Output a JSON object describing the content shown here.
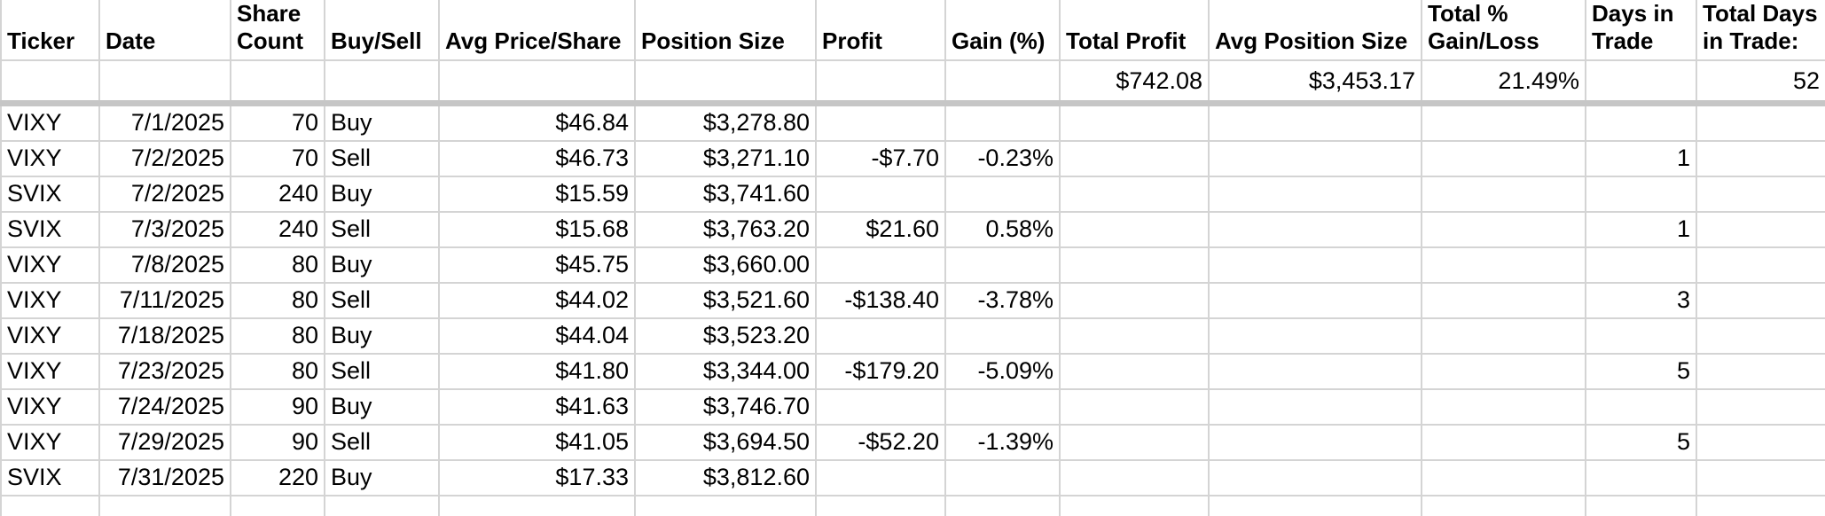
{
  "columns": [
    "Ticker",
    "Date",
    "Share Count",
    "Buy/Sell",
    "Avg Price/Share",
    "Position Size",
    "Profit",
    "Gain (%)",
    "Total Profit",
    "Avg Position Size",
    "Total % Gain/Loss",
    "Days in Trade",
    "Total Days in Trade:"
  ],
  "summary_row": [
    "",
    "",
    "",
    "",
    "",
    "",
    "",
    "",
    "$742.08",
    "$3,453.17",
    "21.49%",
    "",
    "52"
  ],
  "rows": [
    [
      "VIXY",
      "7/1/2025",
      "70",
      "Buy",
      "$46.84",
      "$3,278.80",
      "",
      "",
      "",
      "",
      "",
      "",
      ""
    ],
    [
      "VIXY",
      "7/2/2025",
      "70",
      "Sell",
      "$46.73",
      "$3,271.10",
      "-$7.70",
      "-0.23%",
      "",
      "",
      "",
      "1",
      ""
    ],
    [
      "SVIX",
      "7/2/2025",
      "240",
      "Buy",
      "$15.59",
      "$3,741.60",
      "",
      "",
      "",
      "",
      "",
      "",
      ""
    ],
    [
      "SVIX",
      "7/3/2025",
      "240",
      "Sell",
      "$15.68",
      "$3,763.20",
      "$21.60",
      "0.58%",
      "",
      "",
      "",
      "1",
      ""
    ],
    [
      "VIXY",
      "7/8/2025",
      "80",
      "Buy",
      "$45.75",
      "$3,660.00",
      "",
      "",
      "",
      "",
      "",
      "",
      ""
    ],
    [
      "VIXY",
      "7/11/2025",
      "80",
      "Sell",
      "$44.02",
      "$3,521.60",
      "-$138.40",
      "-3.78%",
      "",
      "",
      "",
      "3",
      ""
    ],
    [
      "VIXY",
      "7/18/2025",
      "80",
      "Buy",
      "$44.04",
      "$3,523.20",
      "",
      "",
      "",
      "",
      "",
      "",
      ""
    ],
    [
      "VIXY",
      "7/23/2025",
      "80",
      "Sell",
      "$41.80",
      "$3,344.00",
      "-$179.20",
      "-5.09%",
      "",
      "",
      "",
      "5",
      ""
    ],
    [
      "VIXY",
      "7/24/2025",
      "90",
      "Buy",
      "$41.63",
      "$3,746.70",
      "",
      "",
      "",
      "",
      "",
      "",
      ""
    ],
    [
      "VIXY",
      "7/29/2025",
      "90",
      "Sell",
      "$41.05",
      "$3,694.50",
      "-$52.20",
      "-1.39%",
      "",
      "",
      "",
      "5",
      ""
    ],
    [
      "SVIX",
      "7/31/2025",
      "220",
      "Buy",
      "$17.33",
      "$3,812.60",
      "",
      "",
      "",
      "",
      "",
      "",
      ""
    ]
  ],
  "colors": {
    "grid_line": "#d4d4d4",
    "freeze_bar": "#c6c6c6",
    "text": "#000000",
    "background": "#ffffff"
  }
}
